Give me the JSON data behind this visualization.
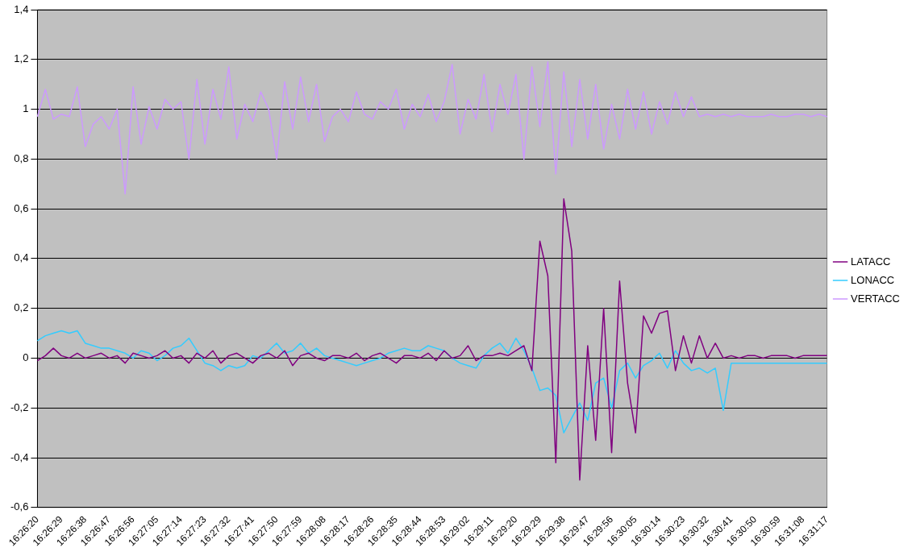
{
  "chart_data": {
    "type": "line",
    "categories": [
      "16:26:20",
      null,
      null,
      "16:26:29",
      null,
      null,
      "16:26:38",
      null,
      null,
      "16:26:47",
      null,
      null,
      "16:26:56",
      null,
      null,
      "16:27:05",
      null,
      null,
      "16:27:14",
      null,
      null,
      "16:27:23",
      null,
      null,
      "16:27:32",
      null,
      null,
      "16:27:41",
      null,
      null,
      "16:27:50",
      null,
      null,
      "16:27:59",
      null,
      null,
      "16:28:08",
      null,
      null,
      "16:28:17",
      null,
      null,
      "16:28:26",
      null,
      null,
      "16:28:35",
      null,
      null,
      "16:28:44",
      null,
      null,
      "16:28:53",
      null,
      null,
      "16:29:02",
      null,
      null,
      "16:29:11",
      null,
      null,
      "16:29:20",
      null,
      null,
      "16:29:29",
      null,
      null,
      "16:29:38",
      null,
      null,
      "16:29:47",
      null,
      null,
      "16:29:56",
      null,
      null,
      "16:30:05",
      null,
      null,
      "16:30:14",
      null,
      null,
      "16:30:23",
      null,
      null,
      "16:30:32",
      null,
      null,
      "16:30:41",
      null,
      null,
      "16:30:50",
      null,
      null,
      "16:30:59",
      null,
      null,
      "16:31:08",
      null,
      null,
      "16:31:17"
    ],
    "series": [
      {
        "name": "LATACC",
        "color": "#800080",
        "values": [
          -0.01,
          0.01,
          0.04,
          0.01,
          0.0,
          0.02,
          0.0,
          0.01,
          0.02,
          0.0,
          0.01,
          -0.02,
          0.02,
          0.01,
          0.0,
          0.01,
          0.03,
          0.0,
          0.01,
          -0.02,
          0.02,
          0.0,
          0.03,
          -0.02,
          0.01,
          0.02,
          0.0,
          -0.02,
          0.01,
          0.02,
          0.0,
          0.03,
          -0.03,
          0.01,
          0.02,
          0.0,
          -0.01,
          0.01,
          0.01,
          0.0,
          0.02,
          -0.01,
          0.01,
          0.02,
          0.0,
          -0.02,
          0.01,
          0.01,
          0.0,
          0.02,
          -0.01,
          0.03,
          0.0,
          0.01,
          0.05,
          -0.01,
          0.01,
          0.01,
          0.02,
          0.01,
          0.03,
          0.05,
          -0.05,
          0.47,
          0.33,
          -0.42,
          0.64,
          0.43,
          -0.49,
          0.05,
          -0.33,
          0.2,
          -0.38,
          0.31,
          -0.1,
          -0.3,
          0.17,
          0.1,
          0.18,
          0.19,
          -0.05,
          0.09,
          -0.02,
          0.09,
          0.0,
          0.06,
          0.0,
          0.01,
          0.0,
          0.01,
          0.01,
          0.0,
          0.01,
          0.01,
          0.01,
          0.0,
          0.01,
          0.01,
          0.01,
          0.01
        ]
      },
      {
        "name": "LONACC",
        "color": "#33ccff",
        "values": [
          0.07,
          0.09,
          0.1,
          0.11,
          0.1,
          0.11,
          0.06,
          0.05,
          0.04,
          0.04,
          0.03,
          0.02,
          0.0,
          0.03,
          0.02,
          -0.01,
          0.01,
          0.04,
          0.05,
          0.08,
          0.03,
          -0.02,
          -0.03,
          -0.05,
          -0.03,
          -0.04,
          -0.03,
          0.01,
          0.0,
          0.03,
          0.06,
          0.02,
          0.03,
          0.06,
          0.02,
          0.04,
          0.01,
          0.0,
          -0.01,
          -0.02,
          -0.03,
          -0.02,
          -0.01,
          0.0,
          0.02,
          0.03,
          0.04,
          0.03,
          0.03,
          0.05,
          0.04,
          0.03,
          0.0,
          -0.02,
          -0.03,
          -0.04,
          0.01,
          0.04,
          0.06,
          0.02,
          0.08,
          0.03,
          -0.04,
          -0.13,
          -0.12,
          -0.15,
          -0.3,
          -0.24,
          -0.18,
          -0.25,
          -0.1,
          -0.08,
          -0.2,
          -0.05,
          -0.02,
          -0.08,
          -0.03,
          -0.01,
          0.02,
          -0.04,
          0.03,
          -0.02,
          -0.05,
          -0.04,
          -0.06,
          -0.04,
          -0.21,
          -0.02,
          -0.02,
          -0.02,
          -0.02,
          -0.02,
          -0.02,
          -0.02,
          -0.02,
          -0.02,
          -0.02,
          -0.02,
          -0.02,
          -0.02
        ]
      },
      {
        "name": "VERTACC",
        "color": "#cc99ff",
        "values": [
          0.97,
          1.08,
          0.96,
          0.98,
          0.97,
          1.09,
          0.85,
          0.94,
          0.97,
          0.92,
          1.0,
          0.66,
          1.09,
          0.86,
          1.01,
          0.92,
          1.04,
          1.0,
          1.03,
          0.8,
          1.12,
          0.86,
          1.08,
          0.96,
          1.17,
          0.88,
          1.02,
          0.95,
          1.07,
          1.0,
          0.8,
          1.11,
          0.92,
          1.13,
          0.95,
          1.1,
          0.87,
          0.97,
          1.0,
          0.95,
          1.07,
          0.98,
          0.96,
          1.03,
          1.0,
          1.08,
          0.92,
          1.02,
          0.97,
          1.06,
          0.95,
          1.03,
          1.18,
          0.9,
          1.04,
          0.96,
          1.14,
          0.91,
          1.1,
          0.98,
          1.14,
          0.8,
          1.17,
          0.93,
          1.19,
          0.74,
          1.15,
          0.85,
          1.12,
          0.88,
          1.1,
          0.84,
          1.02,
          0.88,
          1.08,
          0.92,
          1.07,
          0.9,
          1.03,
          0.94,
          1.07,
          0.97,
          1.05,
          0.97,
          0.98,
          0.97,
          0.98,
          0.97,
          0.98,
          0.97,
          0.97,
          0.97,
          0.98,
          0.97,
          0.97,
          0.98,
          0.98,
          0.97,
          0.98,
          0.97
        ]
      }
    ],
    "ylim": [
      -0.6,
      1.4
    ],
    "yticks": [
      {
        "value": -0.6,
        "label": "-0,6"
      },
      {
        "value": -0.4,
        "label": "-0,4"
      },
      {
        "value": -0.2,
        "label": "-0,2"
      },
      0,
      {
        "value": 0.2,
        "label": "0,2"
      },
      {
        "value": 0.4,
        "label": "0,4"
      },
      {
        "value": 0.6,
        "label": "0,6"
      },
      {
        "value": 0.8,
        "label": "0,8"
      },
      1,
      {
        "value": 1.2,
        "label": "1,2"
      },
      {
        "value": 1.4,
        "label": "1,4"
      }
    ],
    "grid": "y",
    "legend": "right",
    "marker": "none",
    "line_style": "solid"
  }
}
